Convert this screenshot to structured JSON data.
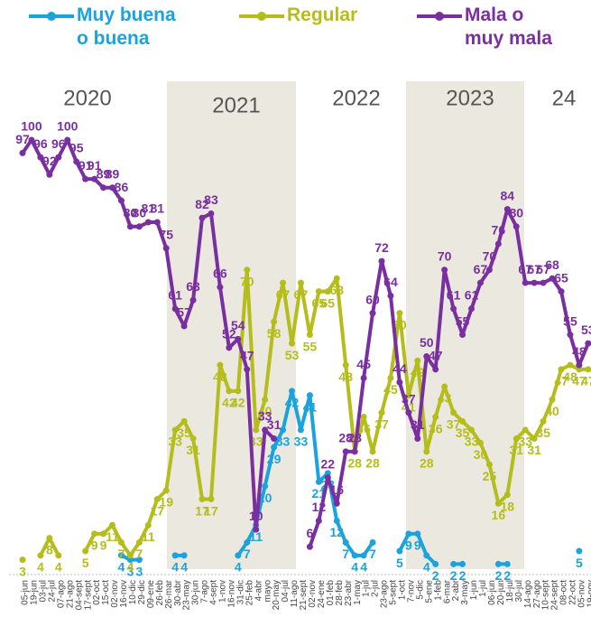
{
  "chart_data": {
    "type": "line",
    "categories": [
      "05-jun",
      "19-jun",
      "03-jul",
      "24-jul",
      "07-ago",
      "21-ago",
      "04-sept",
      "17-sept",
      "02-oct",
      "15-oct",
      "02-nov",
      "16-nov",
      "10-dic",
      "29-dic",
      "09-ene",
      "26-feb",
      "26-mar",
      "30-abr",
      "23-may",
      "30-jun",
      "7-ago",
      "4-sept",
      "1-nov",
      "16-nov",
      "31-dic",
      "25-feb",
      "4-abr",
      "mayo",
      "20-may",
      "04-jul",
      "11-ago",
      "21-sept",
      "02-nov",
      "24-ene",
      "01-feb",
      "28-feb",
      "23-abr",
      "1-may",
      "1-jul",
      "2-jul",
      "23-ago",
      "5-sept",
      "1-oct",
      "7-nov",
      "5-dic",
      "5-ene",
      "1-feb",
      "6-mar",
      "2-abr",
      "3-may",
      "1-jun",
      "1-jul",
      "06-jun",
      "20-jun",
      "18-jul",
      "30-jul",
      "14-ago",
      "27-ago",
      "10-sept",
      "24-sept",
      "08-oct",
      "22-oct",
      "05-nov",
      "19-nov"
    ],
    "year_labels": [
      "2020",
      "2021",
      "2022",
      "2023",
      "24"
    ],
    "series": [
      {
        "name": "Muy buena o buena",
        "color": "#1aa3dc",
        "values": [
          null,
          null,
          null,
          null,
          null,
          null,
          null,
          null,
          null,
          null,
          null,
          4,
          3,
          3,
          null,
          null,
          null,
          4,
          4,
          null,
          null,
          null,
          null,
          null,
          4,
          7,
          11,
          20,
          29,
          33,
          42,
          33,
          41,
          21,
          23,
          12,
          7,
          4,
          4,
          7,
          null,
          null,
          5,
          9,
          9,
          4,
          2,
          null,
          2,
          2,
          null,
          null,
          null,
          2,
          2,
          null,
          null,
          null,
          null,
          null,
          null,
          null,
          5,
          null
        ]
      },
      {
        "name": "Regular",
        "color": "#b5bd1a",
        "values": [
          3,
          null,
          4,
          8,
          4,
          null,
          null,
          5,
          9,
          9,
          11,
          7,
          4,
          7,
          11,
          17,
          19,
          33,
          35,
          31,
          17,
          17,
          48,
          42,
          42,
          70,
          33,
          40,
          58,
          67,
          53,
          67,
          55,
          65,
          65,
          68,
          48,
          28,
          36,
          28,
          37,
          45,
          60,
          41,
          49,
          28,
          36,
          43,
          37,
          35,
          33,
          30,
          25,
          16,
          18,
          31,
          33,
          31,
          35,
          40,
          47,
          48,
          47,
          47
        ]
      },
      {
        "name": "Mala o muy mala",
        "color": "#7a2fa0",
        "values": [
          97,
          100,
          96,
          92,
          96,
          100,
          95,
          91,
          91,
          89,
          89,
          86,
          80,
          80,
          81,
          81,
          75,
          61,
          57,
          63,
          82,
          83,
          66,
          52,
          54,
          47,
          10,
          33,
          31,
          null,
          null,
          null,
          6,
          12,
          22,
          16,
          28,
          28,
          45,
          60,
          72,
          64,
          44,
          37,
          31,
          50,
          47,
          70,
          61,
          55,
          61,
          67,
          70,
          76,
          84,
          80,
          67,
          67,
          67,
          68,
          65,
          55,
          48,
          53
        ]
      }
    ],
    "ylim": [
      0,
      100
    ]
  }
}
